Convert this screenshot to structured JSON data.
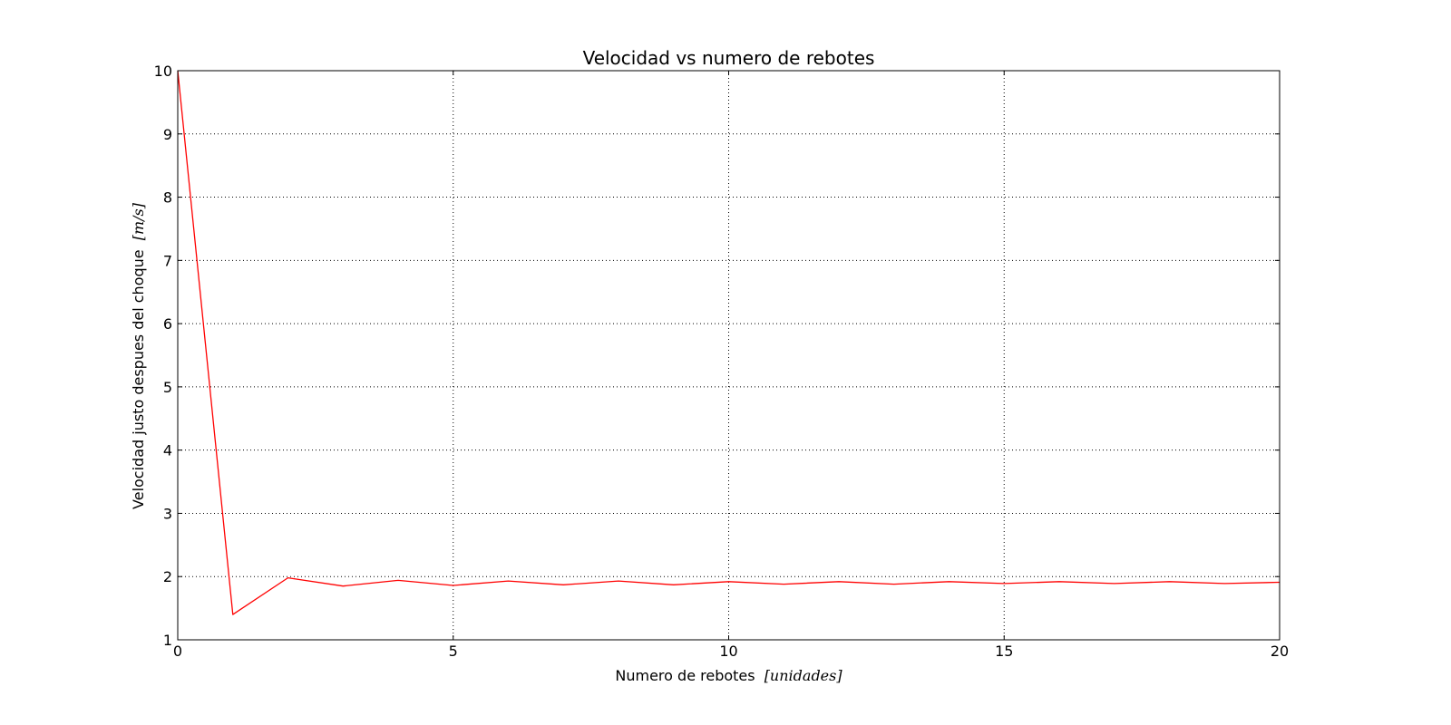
{
  "chart_data": {
    "type": "line",
    "title": "Velocidad vs numero de rebotes",
    "xlabel": "Numero de rebotes",
    "xlabel_unit": "[unidades]",
    "ylabel": "Velocidad justo despues del choque",
    "ylabel_unit": "[m/s]",
    "xlim": [
      0,
      20
    ],
    "ylim": [
      1,
      10
    ],
    "xticks": [
      0,
      5,
      10,
      15,
      20
    ],
    "yticks": [
      1,
      2,
      3,
      4,
      5,
      6,
      7,
      8,
      9,
      10
    ],
    "grid": true,
    "series": [
      {
        "color": "#ff0000",
        "x": [
          0,
          1,
          2,
          3,
          4,
          5,
          6,
          7,
          8,
          9,
          10,
          11,
          12,
          13,
          14,
          15,
          16,
          17,
          18,
          19,
          20
        ],
        "y": [
          10.0,
          1.4,
          1.98,
          1.85,
          1.94,
          1.86,
          1.93,
          1.87,
          1.93,
          1.87,
          1.92,
          1.88,
          1.92,
          1.88,
          1.92,
          1.89,
          1.92,
          1.89,
          1.92,
          1.89,
          1.91
        ]
      }
    ]
  }
}
